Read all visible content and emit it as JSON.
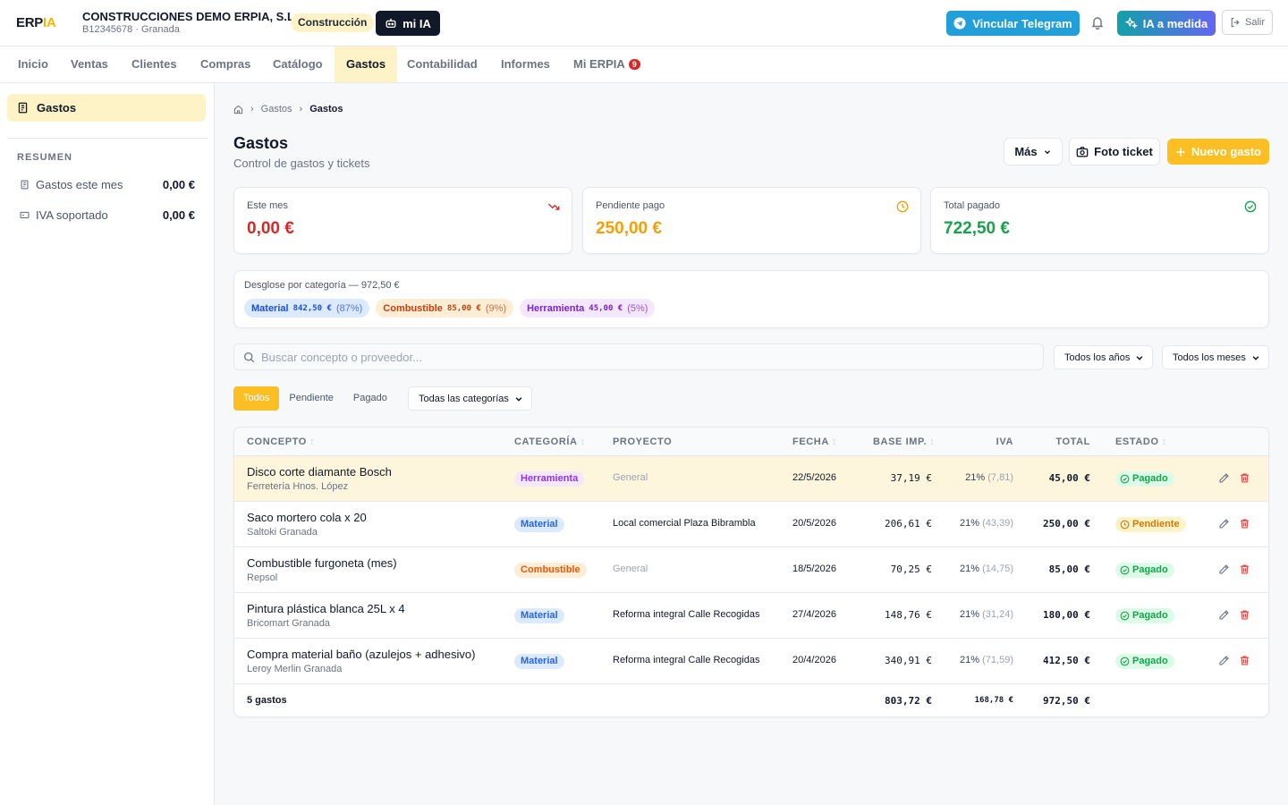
{
  "brand": {
    "logo_main": "ERP",
    "logo_accent": "IA"
  },
  "company": {
    "name": "CONSTRUCCIONES DEMO ERPIA, S.L.",
    "sub": "B12345678 · Granada",
    "sector": "Construcción"
  },
  "header": {
    "mi_ia": "mi IA",
    "telegram": "Vincular Telegram",
    "ia_medida": "IA a medida",
    "salir": "Salir"
  },
  "nav": [
    {
      "label": "Inicio"
    },
    {
      "label": "Ventas"
    },
    {
      "label": "Clientes"
    },
    {
      "label": "Compras"
    },
    {
      "label": "Catálogo"
    },
    {
      "label": "Gastos"
    },
    {
      "label": "Contabilidad"
    },
    {
      "label": "Informes"
    },
    {
      "label": "Mi ERPIA",
      "badge": "9"
    }
  ],
  "sidebar": {
    "active": "Gastos",
    "section": "RESUMEN",
    "items": [
      {
        "label": "Gastos este mes",
        "value": "0,00 €"
      },
      {
        "label": "IVA soportado",
        "value": "0,00 €"
      }
    ]
  },
  "breadcrumb": {
    "level1": "Gastos",
    "level2": "Gastos"
  },
  "page": {
    "title": "Gastos",
    "subtitle": "Control de gastos y tickets"
  },
  "actions": {
    "mas": "Más",
    "foto": "Foto ticket",
    "nuevo": "Nuevo gasto"
  },
  "kpis": [
    {
      "label": "Este mes",
      "value": "0,00 €",
      "color": "#dc2626"
    },
    {
      "label": "Pendiente pago",
      "value": "250,00 €",
      "color": "#f59e0b"
    },
    {
      "label": "Total pagado",
      "value": "722,50 €",
      "color": "#16a34a"
    }
  ],
  "breakdown": {
    "title": "Desglose por categoría — 972,50 €",
    "chips": [
      {
        "name": "Material",
        "amount": "842,50 €",
        "pct": "(87%)"
      },
      {
        "name": "Combustible",
        "amount": "85,00 €",
        "pct": "(9%)"
      },
      {
        "name": "Herramienta",
        "amount": "45,00 €",
        "pct": "(5%)"
      }
    ]
  },
  "filters": {
    "search_placeholder": "Buscar concepto o proveedor...",
    "year": "Todos los años",
    "month": "Todos los meses",
    "tabs": [
      "Todos",
      "Pendiente",
      "Pagado"
    ],
    "category": "Todas las categorías"
  },
  "table": {
    "headers": {
      "concepto": "CONCEPTO",
      "categoria": "CATEGORÍA",
      "proyecto": "PROYECTO",
      "fecha": "FECHA",
      "base": "BASE IMP.",
      "iva": "IVA",
      "total": "TOTAL",
      "estado": "ESTADO"
    },
    "rows": [
      {
        "concept": "Disco corte diamante Bosch",
        "supplier": "Ferretería Hnos. López",
        "category": "Herramienta",
        "project": "General",
        "date": "22/5/2026",
        "base": "37,19 €",
        "iva_pct": "21%",
        "iva_amt": "(7,81)",
        "total": "45,00 €",
        "status": "Pagado"
      },
      {
        "concept": "Saco mortero cola x 20",
        "supplier": "Saltoki Granada",
        "category": "Material",
        "project": "Local comercial Plaza Bibrambla",
        "date": "20/5/2026",
        "base": "206,61 €",
        "iva_pct": "21%",
        "iva_amt": "(43,39)",
        "total": "250,00 €",
        "status": "Pendiente"
      },
      {
        "concept": "Combustible furgoneta (mes)",
        "supplier": "Repsol",
        "category": "Combustible",
        "project": "General",
        "date": "18/5/2026",
        "base": "70,25 €",
        "iva_pct": "21%",
        "iva_amt": "(14,75)",
        "total": "85,00 €",
        "status": "Pagado"
      },
      {
        "concept": "Pintura plástica blanca 25L x 4",
        "supplier": "Bricomart Granada",
        "category": "Material",
        "project": "Reforma integral Calle Recogidas",
        "date": "27/4/2026",
        "base": "148,76 €",
        "iva_pct": "21%",
        "iva_amt": "(31,24)",
        "total": "180,00 €",
        "status": "Pagado"
      },
      {
        "concept": "Compra material baño (azulejos + adhesivo)",
        "supplier": "Leroy Merlin Granada",
        "category": "Material",
        "project": "Reforma integral Calle Recogidas",
        "date": "20/4/2026",
        "base": "340,91 €",
        "iva_pct": "21%",
        "iva_amt": "(71,59)",
        "total": "412,50 €",
        "status": "Pagado"
      }
    ],
    "footer": {
      "count": "5 gastos",
      "base": "803,72 €",
      "iva": "168,78 €",
      "total": "972,50 €"
    }
  },
  "colors": {
    "accent": "#fbbf24",
    "telegram": "#229ed9",
    "material": "#2563eb",
    "combustible": "#ea580c",
    "herramienta": "#9333ea",
    "pagado": "#16a34a",
    "pendiente": "#d97706",
    "delete": "#ef4444"
  }
}
